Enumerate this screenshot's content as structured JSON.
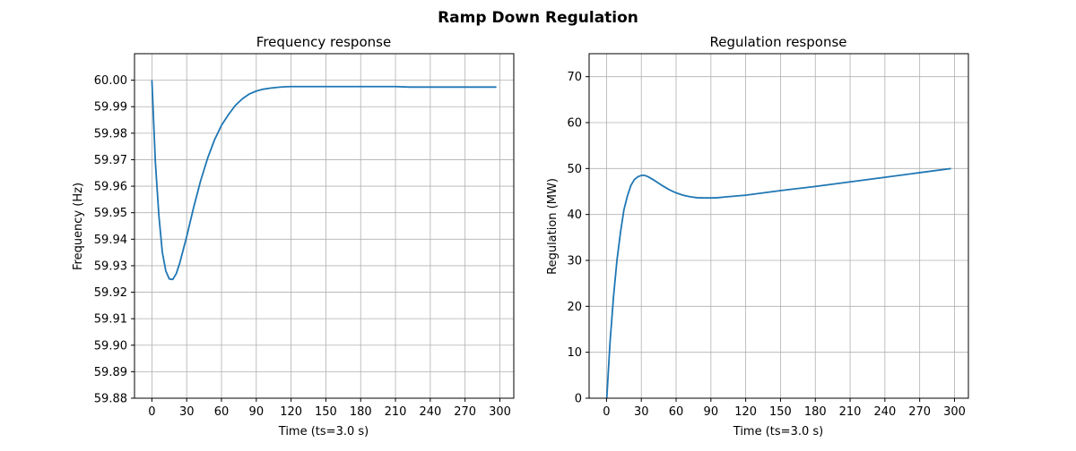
{
  "figure": {
    "suptitle": "Ramp Down Regulation"
  },
  "chart_data": [
    {
      "type": "line",
      "title": "Frequency response",
      "xlabel": "Time (ts=3.0 s)",
      "ylabel": "Frequency (Hz)",
      "xlim": [
        -15,
        312
      ],
      "ylim": [
        59.88,
        60.01
      ],
      "xticks": [
        0,
        30,
        60,
        90,
        120,
        150,
        180,
        210,
        240,
        270,
        300
      ],
      "xtick_labels": [
        "0",
        "30",
        "60",
        "90",
        "120",
        "150",
        "180",
        "210",
        "240",
        "270",
        "300"
      ],
      "yticks": [
        59.88,
        59.89,
        59.9,
        59.91,
        59.92,
        59.93,
        59.94,
        59.95,
        59.96,
        59.97,
        59.98,
        59.99,
        60.0
      ],
      "ytick_labels": [
        "59.88",
        "59.89",
        "59.90",
        "59.91",
        "59.92",
        "59.93",
        "59.94",
        "59.95",
        "59.96",
        "59.97",
        "59.98",
        "59.99",
        "60.00"
      ],
      "grid": true,
      "color": "#1f77b4",
      "series": [
        {
          "x": [
            0,
            3,
            6,
            9,
            12,
            15,
            18,
            21,
            24,
            27,
            30,
            36,
            42,
            48,
            54,
            60,
            66,
            72,
            78,
            84,
            90,
            96,
            102,
            108,
            114,
            120,
            150,
            180,
            210,
            222,
            240,
            270,
            297
          ],
          "y": [
            60.0,
            59.969,
            59.949,
            59.935,
            59.928,
            59.925,
            59.9248,
            59.927,
            59.931,
            59.936,
            59.941,
            59.952,
            59.962,
            59.9705,
            59.9775,
            59.983,
            59.987,
            59.9905,
            59.993,
            59.9948,
            59.9959,
            59.9966,
            59.997,
            59.9973,
            59.9975,
            59.9976,
            59.9976,
            59.9976,
            59.9976,
            59.9974,
            59.9974,
            59.9974,
            59.9974
          ]
        }
      ]
    },
    {
      "type": "line",
      "title": "Regulation response",
      "xlabel": "Time (ts=3.0 s)",
      "ylabel": "Regulation (MW)",
      "xlim": [
        -15,
        312
      ],
      "ylim": [
        0,
        75
      ],
      "xticks": [
        0,
        30,
        60,
        90,
        120,
        150,
        180,
        210,
        240,
        270,
        300
      ],
      "xtick_labels": [
        "0",
        "30",
        "60",
        "90",
        "120",
        "150",
        "180",
        "210",
        "240",
        "270",
        "300"
      ],
      "yticks": [
        0,
        10,
        20,
        30,
        40,
        50,
        60,
        70
      ],
      "ytick_labels": [
        "0",
        "10",
        "20",
        "30",
        "40",
        "50",
        "60",
        "70"
      ],
      "grid": true,
      "color": "#1f77b4",
      "series": [
        {
          "x": [
            0,
            3,
            6,
            9,
            12,
            15,
            18,
            21,
            24,
            27,
            30,
            33,
            36,
            42,
            48,
            54,
            60,
            66,
            72,
            78,
            84,
            90,
            96,
            102,
            120,
            150,
            180,
            210,
            240,
            270,
            297
          ],
          "y": [
            -1,
            12,
            22,
            30,
            36,
            41,
            44,
            46.3,
            47.6,
            48.2,
            48.5,
            48.5,
            48.2,
            47.3,
            46.3,
            45.4,
            44.7,
            44.2,
            43.85,
            43.65,
            43.6,
            43.6,
            43.65,
            43.8,
            44.2,
            45.2,
            46.1,
            47.1,
            48.1,
            49.1,
            50
          ]
        }
      ]
    }
  ]
}
